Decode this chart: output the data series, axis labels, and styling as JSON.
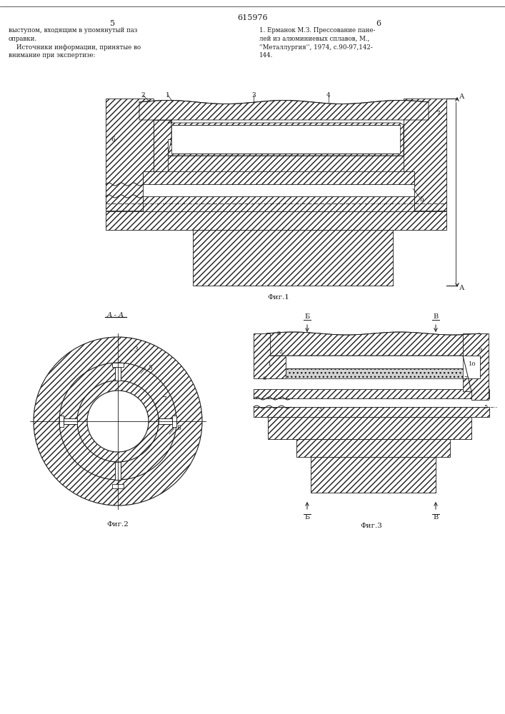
{
  "title": "615976",
  "page_left": "5",
  "page_right": "6",
  "text_left": "выступом, входящим в упомянутый паз\nоправки.\n    Источники информации, принятые во\nвнимание при экспертизе:",
  "text_right": "1. Ерманок М.З. Прессование пане-\nлей из алюминиевых сплавов, М.,\n''Металлургия'', 1974, с.90-97,142-\n144.",
  "fig1_caption": "Фиг.1",
  "fig2_caption": "Фиг.2",
  "fig3_caption": "Фиг.3",
  "bg_color": "#ffffff",
  "line_color": "#1a1a1a"
}
